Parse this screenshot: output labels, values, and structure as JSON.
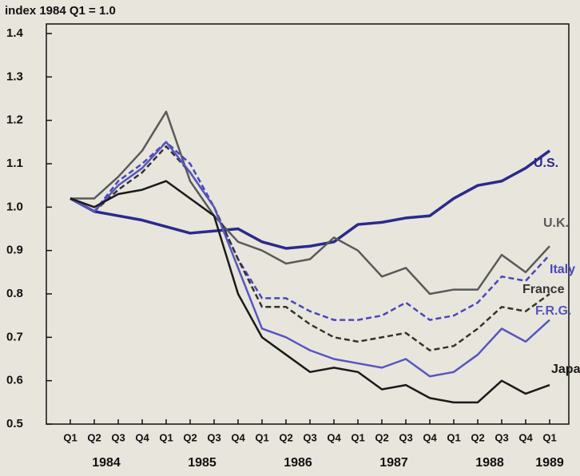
{
  "chart_data": {
    "type": "line",
    "title": "index 1984 Q1 = 1.0",
    "categories": [
      "Q1",
      "Q2",
      "Q3",
      "Q4",
      "Q1",
      "Q2",
      "Q3",
      "Q4",
      "Q1",
      "Q2",
      "Q3",
      "Q4",
      "Q1",
      "Q2",
      "Q3",
      "Q4",
      "Q1",
      "Q2",
      "Q3",
      "Q4",
      "Q1"
    ],
    "years": [
      "1984",
      "1985",
      "1986",
      "1987",
      "1988",
      "1989"
    ],
    "ylim": [
      0.5,
      1.4
    ],
    "yticks": [
      0.5,
      0.6,
      0.7,
      0.8,
      0.9,
      {
        "value": 1,
        "label": "1.0"
      },
      1.1,
      1.2,
      1.3,
      1.4
    ],
    "grid": false,
    "series": [
      {
        "name": "U.S.",
        "color": "#2a2a8c",
        "dash": false,
        "values": [
          1.02,
          0.99,
          0.98,
          0.97,
          0.955,
          0.94,
          0.945,
          0.95,
          0.92,
          0.905,
          0.91,
          0.92,
          0.96,
          0.965,
          0.975,
          0.98,
          1.02,
          1.05,
          1.06,
          1.09,
          1.13
        ]
      },
      {
        "name": "U.K.",
        "color": "#5a5a5a",
        "dash": false,
        "values": [
          1.02,
          1.02,
          1.07,
          1.13,
          1.22,
          1.06,
          0.98,
          0.92,
          0.9,
          0.87,
          0.88,
          0.93,
          0.9,
          0.84,
          0.86,
          0.8,
          0.81,
          0.81,
          0.89,
          0.85,
          0.91
        ]
      },
      {
        "name": "Italy",
        "color": "#4848b8",
        "dash": true,
        "values": [
          1.02,
          0.99,
          1.06,
          1.1,
          1.15,
          1.1,
          1.0,
          0.88,
          0.79,
          0.79,
          0.76,
          0.74,
          0.74,
          0.75,
          0.78,
          0.74,
          0.75,
          0.78,
          0.84,
          0.83,
          0.89
        ]
      },
      {
        "name": "France",
        "color": "#333333",
        "dash": true,
        "values": [
          1.02,
          0.99,
          1.04,
          1.08,
          1.14,
          1.08,
          1.0,
          0.88,
          0.77,
          0.77,
          0.73,
          0.7,
          0.69,
          0.7,
          0.71,
          0.67,
          0.68,
          0.72,
          0.77,
          0.76,
          0.8
        ]
      },
      {
        "name": "F.R.G.",
        "color": "#5656c0",
        "dash": false,
        "values": [
          1.02,
          0.99,
          1.05,
          1.09,
          1.15,
          1.08,
          1.0,
          0.86,
          0.72,
          0.7,
          0.67,
          0.65,
          0.64,
          0.63,
          0.65,
          0.61,
          0.62,
          0.66,
          0.72,
          0.69,
          0.74
        ]
      },
      {
        "name": "Japan",
        "color": "#1a1a1a",
        "dash": false,
        "values": [
          1.02,
          1.0,
          1.03,
          1.04,
          1.06,
          1.02,
          0.98,
          0.8,
          0.7,
          0.66,
          0.62,
          0.63,
          0.62,
          0.58,
          0.59,
          0.56,
          0.55,
          0.55,
          0.6,
          0.57,
          0.59
        ]
      }
    ]
  }
}
